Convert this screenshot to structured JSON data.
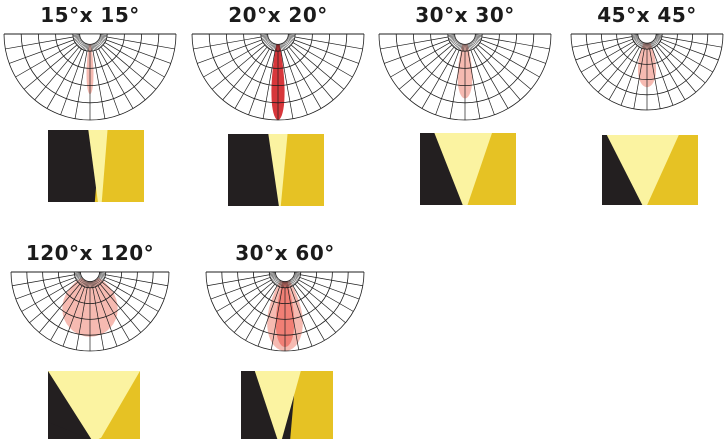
{
  "colors": {
    "grid": "#1e1e1e",
    "gridFill": "#ffffff",
    "beamPale": "#f5b3a8",
    "beamMid": "#f07b72",
    "beamDeep": "#d32126",
    "dark": "#231f20",
    "yellow": "#e6c224",
    "lightYellow": "#fbf3a1"
  },
  "panels": [
    {
      "title": "15°x 15°",
      "spread_deg": 15,
      "reach": 0.7,
      "intensity": "pale",
      "pattern": {
        "cone_top_width": 0.2,
        "cone_bottom_width": 0.04,
        "cone_top_offset": 0.42,
        "yellow_offset": 0.55,
        "stripes": 1
      }
    },
    {
      "title": "20°x 20°",
      "spread_deg": 20,
      "reach": 1.0,
      "intensity": "deep",
      "pattern": {
        "cone_top_width": 0.2,
        "cone_bottom_width": 0.02,
        "cone_top_offset": 0.42,
        "yellow_offset": 0.6,
        "stripes": 1
      }
    },
    {
      "title": "30°x 30°",
      "spread_deg": 30,
      "reach": 0.75,
      "intensity": "pale",
      "pattern": {
        "cone_top_width": 0.6,
        "cone_bottom_width": 0.05,
        "cone_top_offset": 0.15,
        "yellow_offset": 0.55,
        "stripes": 1
      }
    },
    {
      "title": "45°x 45°",
      "spread_deg": 45,
      "reach": 0.7,
      "intensity": "pale",
      "pattern": {
        "cone_top_width": 0.75,
        "cone_bottom_width": 0.05,
        "cone_top_offset": 0.05,
        "yellow_offset": 0.5,
        "stripes": 1
      }
    },
    {
      "title": "120°x 120°",
      "spread_deg": 120,
      "reach": 0.82,
      "intensity": "pale",
      "pattern": {
        "cone_top_width": 1.0,
        "cone_bottom_width": 0.1,
        "cone_top_offset": 0.0,
        "yellow_offset": 0.6,
        "stripes": 1
      }
    },
    {
      "title": "30°x 60°",
      "spread_deg": 60,
      "reach": 1.0,
      "intensity": "mid",
      "pattern": {
        "cone_top_width": 0.5,
        "cone_bottom_width": 0.05,
        "cone_top_offset": 0.15,
        "yellow_offset": 0.6,
        "stripes": 2
      }
    }
  ]
}
